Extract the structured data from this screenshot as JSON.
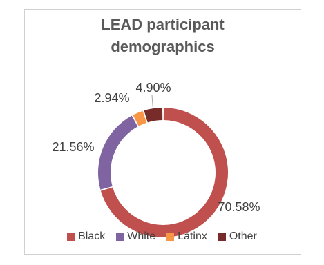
{
  "chart_data": {
    "type": "pie",
    "subtype": "doughnut",
    "title_lines": [
      "LEAD participant",
      "demographics"
    ],
    "categories": [
      "Black",
      "White",
      "Latinx",
      "Other"
    ],
    "values": [
      70.58,
      21.56,
      2.94,
      4.9
    ],
    "data_labels": [
      "70.58%",
      "21.56%",
      "2.94%",
      "4.90%"
    ],
    "colors": [
      "#C0504D",
      "#8064A2",
      "#F79646",
      "#772C2A"
    ],
    "legend_position": "bottom"
  }
}
